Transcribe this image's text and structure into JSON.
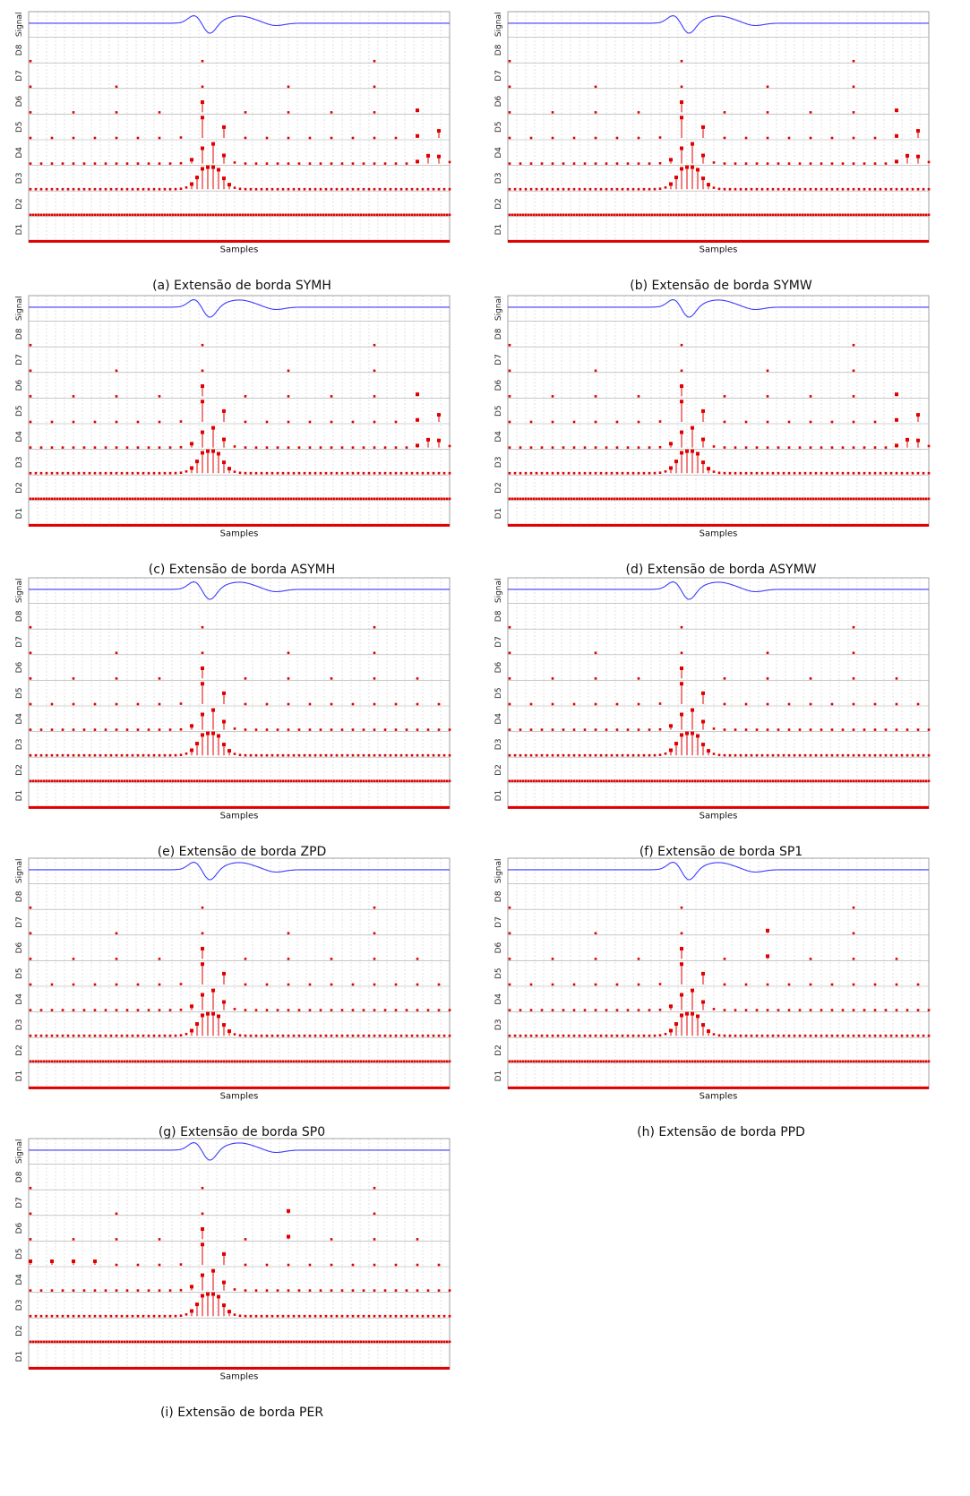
{
  "chart_data": [
    {
      "type": "stem",
      "caption": "(a) Extensão de borda SYMH",
      "xlabel": "Samples",
      "rows": [
        "Signal",
        "D8",
        "D7",
        "D6",
        "D5",
        "D4",
        "D3",
        "D2",
        "D1"
      ],
      "boundary": "SYMH",
      "right_edge_peaks": true,
      "left_edge_peaks": false
    },
    {
      "type": "stem",
      "caption": "(b) Extensão de borda SYMW",
      "xlabel": "Samples",
      "rows": [
        "Signal",
        "D8",
        "D7",
        "D6",
        "D5",
        "D4",
        "D3",
        "D2",
        "D1"
      ],
      "boundary": "SYMW",
      "right_edge_peaks": true,
      "left_edge_peaks": false
    },
    {
      "type": "stem",
      "caption": "(c) Extensão de borda ASYMH",
      "xlabel": "Samples",
      "rows": [
        "Signal",
        "D8",
        "D7",
        "D6",
        "D5",
        "D4",
        "D3",
        "D2",
        "D1"
      ],
      "boundary": "ASYMH",
      "right_edge_peaks": true,
      "left_edge_peaks": false
    },
    {
      "type": "stem",
      "caption": "(d) Extensão de borda ASYMW",
      "xlabel": "Samples",
      "rows": [
        "Signal",
        "D8",
        "D7",
        "D6",
        "D5",
        "D4",
        "D3",
        "D2",
        "D1"
      ],
      "boundary": "ASYMW",
      "right_edge_peaks": true,
      "left_edge_peaks": false
    },
    {
      "type": "stem",
      "caption": "(e) Extensão de borda ZPD",
      "xlabel": "Samples",
      "rows": [
        "Signal",
        "D8",
        "D7",
        "D6",
        "D5",
        "D4",
        "D3",
        "D2",
        "D1"
      ],
      "boundary": "ZPD",
      "right_edge_peaks": false,
      "left_edge_peaks": false
    },
    {
      "type": "stem",
      "caption": "(f) Extensão de borda SP1",
      "xlabel": "Samples",
      "rows": [
        "Signal",
        "D8",
        "D7",
        "D6",
        "D5",
        "D4",
        "D3",
        "D2",
        "D1"
      ],
      "boundary": "SP1",
      "right_edge_peaks": false,
      "left_edge_peaks": false
    },
    {
      "type": "stem",
      "caption": "(g) Extensão de borda SP0",
      "xlabel": "Samples",
      "rows": [
        "Signal",
        "D8",
        "D7",
        "D6",
        "D5",
        "D4",
        "D3",
        "D2",
        "D1"
      ],
      "boundary": "SP0",
      "right_edge_peaks": false,
      "left_edge_peaks": false
    },
    {
      "type": "stem",
      "caption": "(h) Extensão de borda PPD",
      "xlabel": "Samples",
      "rows": [
        "Signal",
        "D8",
        "D7",
        "D6",
        "D5",
        "D4",
        "D3",
        "D2",
        "D1"
      ],
      "boundary": "PPD",
      "right_edge_peaks": false,
      "left_edge_peaks": false,
      "periodic_dots": true
    },
    {
      "type": "stem",
      "caption": "(i) Extensão de borda PER",
      "xlabel": "Samples",
      "rows": [
        "Signal",
        "D8",
        "D7",
        "D6",
        "D5",
        "D4",
        "D3",
        "D2",
        "D1"
      ],
      "boundary": "PER",
      "right_edge_peaks": false,
      "left_edge_peaks": true,
      "periodic_dots": true
    }
  ],
  "colors": {
    "signal": "#3b3bff",
    "stem": "#e00000",
    "row_line": "#a8a8a8",
    "grid": "#d6d6d6",
    "frame": "#8a8a8a"
  }
}
